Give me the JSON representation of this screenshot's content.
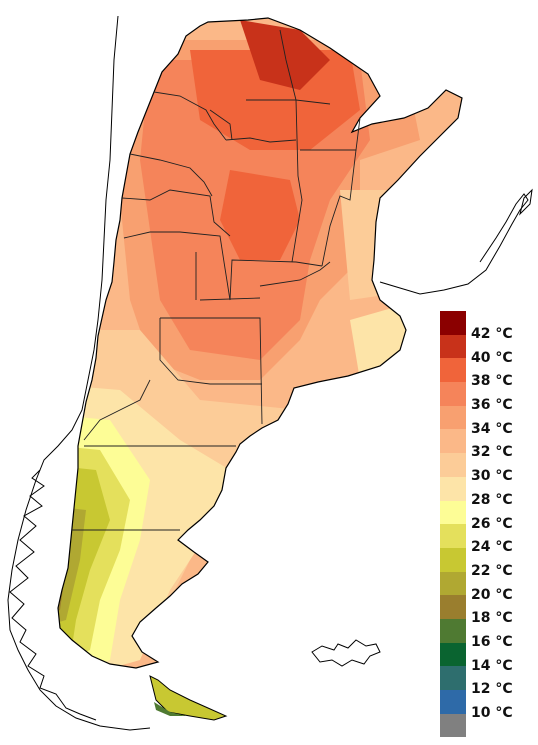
{
  "legend": {
    "items": [
      {
        "label": "42 °C",
        "color": "#8b0000"
      },
      {
        "label": "40 °C",
        "color": "#c8321a"
      },
      {
        "label": "38 °C",
        "color": "#f0643a"
      },
      {
        "label": "36 °C",
        "color": "#f5845a"
      },
      {
        "label": "34 °C",
        "color": "#f8a070"
      },
      {
        "label": "32 °C",
        "color": "#fbb888"
      },
      {
        "label": "30 °C",
        "color": "#fccc98"
      },
      {
        "label": "28 °C",
        "color": "#fde4a8"
      },
      {
        "label": "26 °C",
        "color": "#fdfd96"
      },
      {
        "label": "24 °C",
        "color": "#e4e05c"
      },
      {
        "label": "22 °C",
        "color": "#c8c832"
      },
      {
        "label": "20 °C",
        "color": "#b0a832"
      },
      {
        "label": "18 °C",
        "color": "#9a7e2e"
      },
      {
        "label": "16 °C",
        "color": "#4f7a32"
      },
      {
        "label": "14 °C",
        "color": "#0a6430"
      },
      {
        "label": "12 °C",
        "color": "#2e6e6e"
      },
      {
        "label": "10 °C",
        "color": "#2e6aa8"
      },
      {
        "label": "",
        "color": "#808080"
      }
    ]
  }
}
